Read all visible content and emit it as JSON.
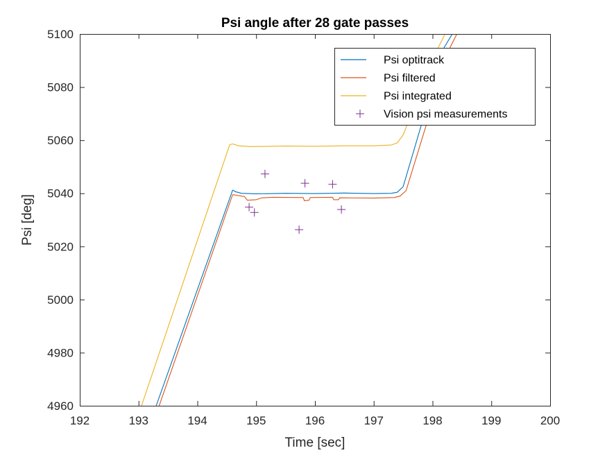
{
  "chart_data": {
    "type": "line",
    "title": "Psi angle after 28 gate passes",
    "xlabel": "Time [sec]",
    "ylabel": "Psi [deg]",
    "xlim": [
      192,
      200
    ],
    "ylim": [
      4960,
      5100
    ],
    "xticks": [
      192,
      193,
      194,
      195,
      196,
      197,
      198,
      199,
      200
    ],
    "yticks": [
      4960,
      4980,
      5000,
      5020,
      5040,
      5060,
      5080,
      5100
    ],
    "grid": false,
    "legend_position": "top-right",
    "series": [
      {
        "name": "Psi optitrack",
        "color": "#0072BD",
        "style": "line",
        "x": [
          193.3,
          194.6,
          194.65,
          194.75,
          195.0,
          195.5,
          196.0,
          196.5,
          197.0,
          197.3,
          197.4,
          197.5,
          198.2,
          198.5
        ],
        "y": [
          4960,
          5041.2,
          5040.6,
          5040.0,
          5039.8,
          5040.0,
          5039.9,
          5040.1,
          5039.9,
          5040.0,
          5040.4,
          5042.5,
          5095,
          5106
        ]
      },
      {
        "name": "Psi filtered",
        "color": "#D95319",
        "style": "line",
        "x": [
          193.35,
          194.6,
          194.8,
          194.85,
          195.0,
          195.1,
          195.3,
          195.8,
          195.82,
          195.9,
          195.92,
          196.3,
          196.32,
          196.4,
          196.42,
          197.0,
          197.35,
          197.45,
          197.55,
          198.3,
          198.55
        ],
        "y": [
          4960,
          5039.5,
          5038.8,
          5037.4,
          5037.6,
          5038.3,
          5038.5,
          5038.4,
          5037.2,
          5037.4,
          5038.4,
          5038.5,
          5037.6,
          5037.6,
          5038.3,
          5038.2,
          5038.4,
          5039.0,
          5041.0,
          5095,
          5106
        ]
      },
      {
        "name": "Psi integrated",
        "color": "#EDB120",
        "style": "line",
        "x": [
          193.05,
          194.55,
          194.6,
          194.7,
          194.9,
          195.5,
          196.0,
          196.5,
          197.0,
          197.3,
          197.4,
          197.5,
          198.1,
          198.35
        ],
        "y": [
          4960,
          5058.3,
          5058.6,
          5057.9,
          5057.6,
          5057.8,
          5057.7,
          5057.9,
          5057.9,
          5058.2,
          5059.0,
          5062.0,
          5095,
          5106
        ]
      },
      {
        "name": "Vision psi measurements",
        "color": "#7E2F8E",
        "style": "markers",
        "marker": "+",
        "x": [
          194.88,
          194.97,
          195.15,
          195.73,
          195.83,
          196.3,
          196.45
        ],
        "y": [
          5034.8,
          5032.8,
          5047.3,
          5026.3,
          5043.8,
          5043.4,
          5033.9
        ]
      }
    ]
  }
}
